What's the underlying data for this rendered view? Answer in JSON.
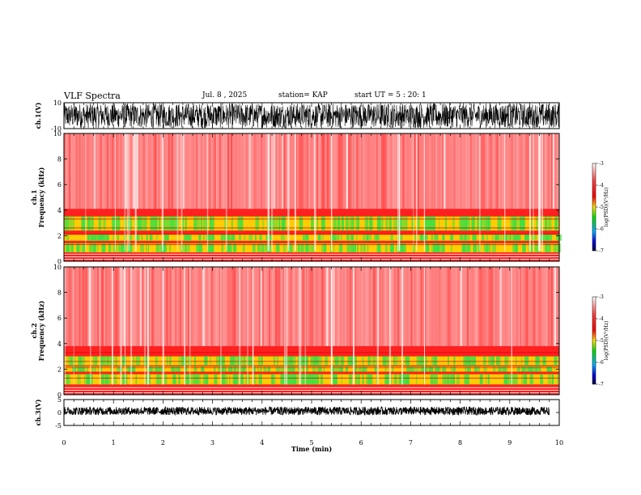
{
  "header": {
    "title": "VLF Spectra",
    "date": "Jul. 8 , 2025",
    "station": "station= KAP",
    "start": "start UT =  5 : 20: 1"
  },
  "chart_data": [
    {
      "type": "line",
      "name": "ch1-waveform",
      "ylabel": "ch.1(V)",
      "ylim": [
        -10,
        10
      ],
      "yticks": [
        "10",
        "-10"
      ],
      "xlim": [
        0,
        10
      ]
    },
    {
      "type": "heatmap",
      "name": "ch1-spectrogram",
      "ylabel": "ch.1\nFrequency (kHz)",
      "ylim": [
        0,
        10
      ],
      "yticks": [
        "10",
        "8",
        "6",
        "4",
        "2",
        "0"
      ],
      "xlim": [
        0,
        10
      ],
      "colorbar": {
        "label": "log(PSD)(V²/Hz)",
        "range": [
          -7,
          -3
        ],
        "ticks": [
          "-3",
          "-4",
          "-5",
          "-6",
          "-7"
        ]
      }
    },
    {
      "type": "heatmap",
      "name": "ch2-spectrogram",
      "ylabel": "ch.2\nFrequency (kHz)",
      "ylim": [
        0,
        10
      ],
      "yticks": [
        "10",
        "8",
        "6",
        "4",
        "2",
        "0"
      ],
      "xlim": [
        0,
        10
      ],
      "colorbar": {
        "label": "log(PSD)(V²/Hz)",
        "range": [
          -7,
          -3
        ],
        "ticks": [
          "-3",
          "-4",
          "-5",
          "-6",
          "-7"
        ]
      }
    },
    {
      "type": "line",
      "name": "ch3-waveform",
      "ylabel": "ch.3(V)",
      "ylim": [
        -5,
        5
      ],
      "yticks": [
        "5",
        "0",
        "-5"
      ],
      "xlim": [
        0,
        10
      ],
      "xlabel": "Time (min)",
      "xticks": [
        "0",
        "1",
        "2",
        "3",
        "4",
        "5",
        "6",
        "7",
        "8",
        "9",
        "10"
      ],
      "data_end_min": 9.8
    }
  ],
  "colors": {
    "spectrogram_high": "#ff2020",
    "spectrogram_mid": "#ffe000",
    "spectrogram_low": "#40e040",
    "waveform": "#000000"
  }
}
